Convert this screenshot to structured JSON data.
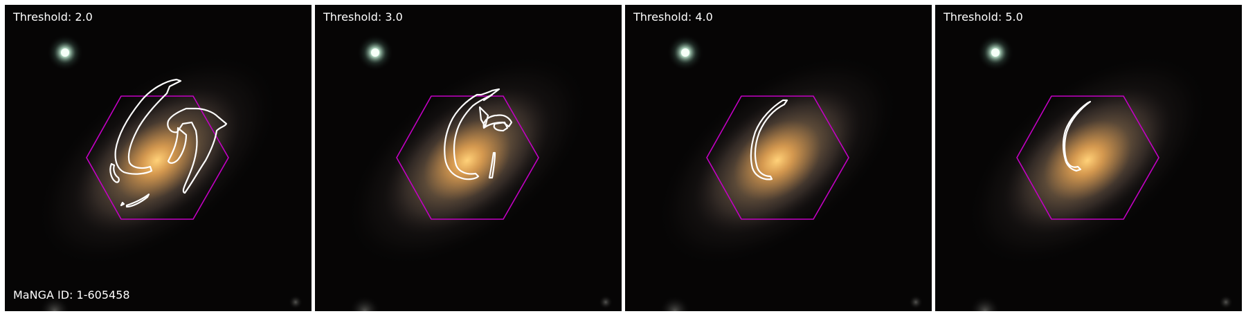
{
  "panels": [
    {
      "label": "Threshold: 2.0",
      "footer": "MaNGA ID: 1-605458"
    },
    {
      "label": "Threshold: 3.0",
      "footer": ""
    },
    {
      "label": "Threshold: 4.0",
      "footer": ""
    },
    {
      "label": "Threshold: 5.0",
      "footer": ""
    }
  ],
  "colors": {
    "ifu_hexagon": "#c400c4",
    "contour": "#ffffff",
    "background": "#060505",
    "galaxy_core": "#f0b35a"
  }
}
